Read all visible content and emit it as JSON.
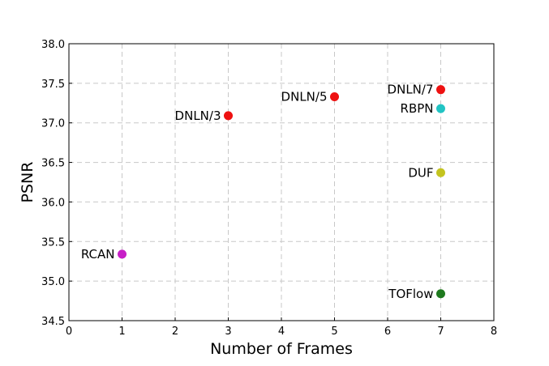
{
  "chart_data": {
    "type": "scatter",
    "title": "",
    "xlabel": "Number of Frames",
    "ylabel": "PSNR",
    "xlim": [
      0,
      8
    ],
    "ylim": [
      34.5,
      38.0
    ],
    "xticks": [
      "0",
      "1",
      "2",
      "3",
      "4",
      "5",
      "6",
      "7",
      "8"
    ],
    "yticks": [
      "34.5",
      "35.0",
      "35.5",
      "36.0",
      "36.5",
      "37.0",
      "37.5",
      "38.0"
    ],
    "grid": true,
    "points": [
      {
        "label": "RCAN",
        "x": 1,
        "y": 35.34,
        "color": "#c71fc7",
        "label_side": "left"
      },
      {
        "label": "DNLN/3",
        "x": 3,
        "y": 37.09,
        "color": "#ee1111",
        "label_side": "left"
      },
      {
        "label": "DNLN/5",
        "x": 5,
        "y": 37.33,
        "color": "#ee1111",
        "label_side": "left"
      },
      {
        "label": "DNLN/7",
        "x": 7,
        "y": 37.42,
        "color": "#ee1111",
        "label_side": "left"
      },
      {
        "label": "RBPN",
        "x": 7,
        "y": 37.18,
        "color": "#22c4c4",
        "label_side": "left"
      },
      {
        "label": "DUF",
        "x": 7,
        "y": 36.37,
        "color": "#c4c41f",
        "label_side": "left"
      },
      {
        "label": "TOFlow",
        "x": 7,
        "y": 34.84,
        "color": "#1f7a1f",
        "label_side": "left"
      }
    ]
  }
}
